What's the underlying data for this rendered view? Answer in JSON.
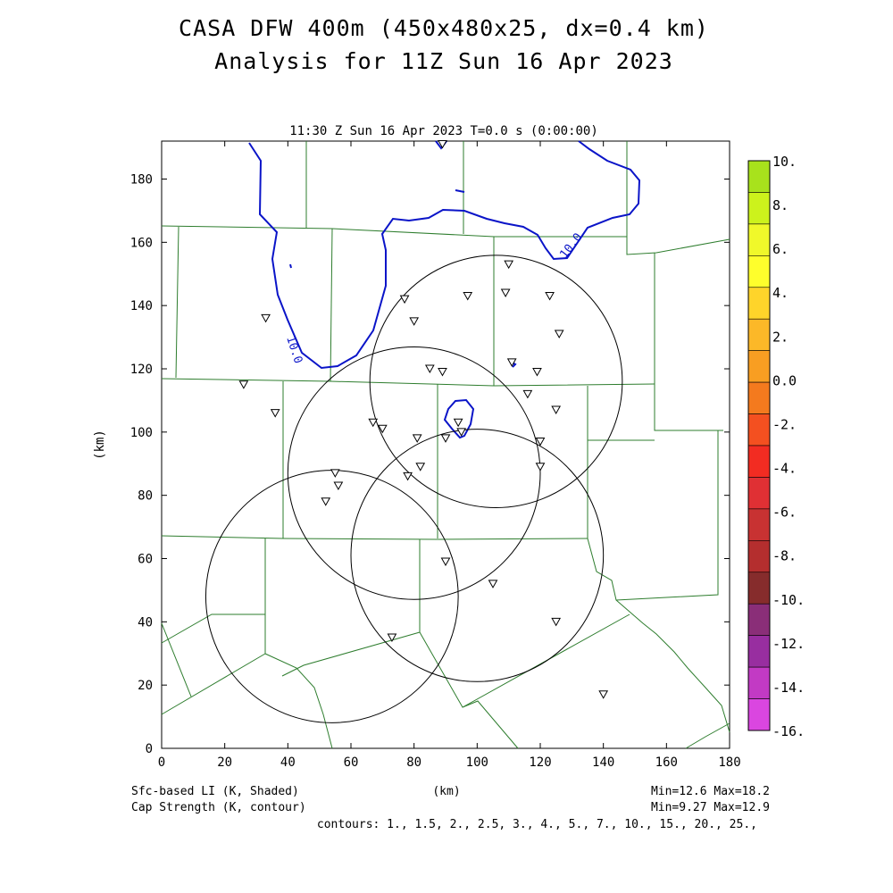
{
  "title": {
    "line1": "CASA DFW 400m (450x480x25, dx=0.4 km)",
    "line2": "Analysis for 11Z Sun 16 Apr 2023"
  },
  "plot": {
    "time_label": "11:30 Z Sun 16 Apr 2023   T=0.0 s (0:00:00)",
    "xlabel": "(km)",
    "ylabel": "(km)",
    "xticks": [
      0,
      20,
      40,
      60,
      80,
      100,
      120,
      140,
      160,
      180
    ],
    "yticks": [
      0,
      20,
      40,
      60,
      80,
      100,
      120,
      140,
      160,
      180
    ],
    "xlim": [
      0,
      180
    ],
    "ylim": [
      0,
      192
    ],
    "contour_label": "10.0"
  },
  "colorbar": {
    "labels": [
      "10.",
      "8.",
      "6.",
      "4.",
      "2.",
      "0.0",
      "-2.",
      "-4.",
      "-6.",
      "-8.",
      "-10.",
      "-12.",
      "-14.",
      "-16."
    ],
    "colors": [
      "#a8e21c",
      "#ccf21c",
      "#f0f82a",
      "#fefe2c",
      "#fed42a",
      "#fcb828",
      "#f89e22",
      "#f47a1e",
      "#f45020",
      "#f22c22",
      "#e03034",
      "#c83232",
      "#b42e2e",
      "#862c2c",
      "#8a2e78",
      "#982ea0",
      "#c23ac4",
      "#da46e0"
    ]
  },
  "footer": {
    "left1": "Sfc-based LI (K, Shaded)",
    "left2": "Cap Strength (K, contour)",
    "center": "(km)",
    "right1": "Min=12.6 Max=18.2",
    "right2": "Min=9.27 Max=12.9",
    "contours": "contours: 1., 1.5, 2., 2.5, 3., 4., 5., 7., 10., 15., 20., 25.,"
  },
  "radars": [
    {
      "cx": 106,
      "cy": 116,
      "r": 40
    },
    {
      "cx": 80,
      "cy": 87,
      "r": 40
    },
    {
      "cx": 100,
      "cy": 61,
      "r": 40
    },
    {
      "cx": 54,
      "cy": 48,
      "r": 40
    }
  ],
  "stations": [
    [
      89,
      191
    ],
    [
      110,
      153
    ],
    [
      33,
      136
    ],
    [
      77,
      142
    ],
    [
      80,
      135
    ],
    [
      97,
      143
    ],
    [
      109,
      144
    ],
    [
      123,
      143
    ],
    [
      126,
      131
    ],
    [
      111,
      122
    ],
    [
      85,
      120
    ],
    [
      89,
      119
    ],
    [
      119,
      119
    ],
    [
      26,
      115
    ],
    [
      116,
      112
    ],
    [
      125,
      107
    ],
    [
      36,
      106
    ],
    [
      67,
      103
    ],
    [
      70,
      101
    ],
    [
      94,
      103
    ],
    [
      90,
      98
    ],
    [
      95,
      100
    ],
    [
      81,
      98
    ],
    [
      120,
      97
    ],
    [
      82,
      89
    ],
    [
      120,
      89
    ],
    [
      78,
      86
    ],
    [
      55,
      87
    ],
    [
      56,
      83
    ],
    [
      52,
      78
    ],
    [
      90,
      59
    ],
    [
      105,
      52
    ],
    [
      125,
      40
    ],
    [
      73,
      35
    ],
    [
      140,
      17
    ]
  ]
}
